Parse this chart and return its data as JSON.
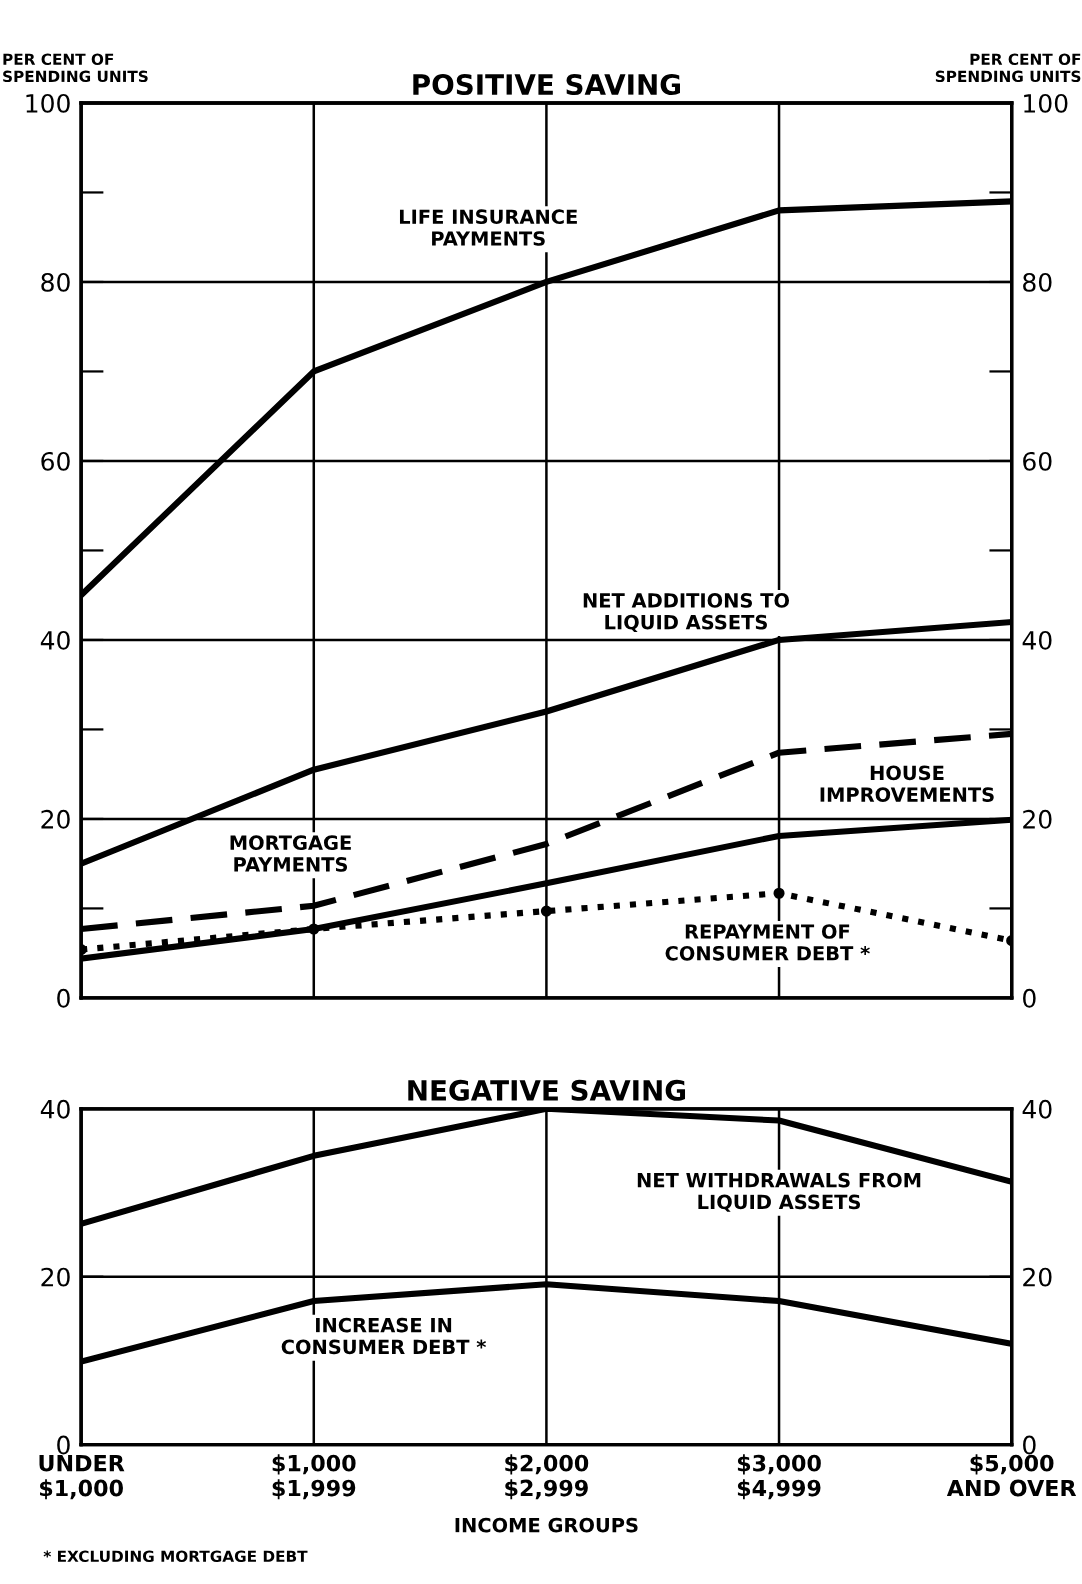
{
  "chart_data": [
    {
      "type": "line",
      "title": "POSITIVE SAVING",
      "ylabel": "PER CENT OF\nSPENDING UNITS",
      "y2label": "PER CENT OF\nSPENDING UNITS",
      "categories": [
        null,
        null,
        null,
        null,
        null
      ],
      "ylim": [
        0,
        100
      ],
      "yticks": [
        0,
        {
          "value": 10,
          "label": null
        },
        20,
        {
          "value": 30,
          "label": null
        },
        40,
        {
          "value": 50,
          "label": null
        },
        60,
        {
          "value": 70,
          "label": null
        },
        80,
        {
          "value": 90,
          "label": null
        },
        100
      ],
      "y2lim": [
        0,
        100
      ],
      "y2ticks": [
        0,
        {
          "value": 10,
          "label": null
        },
        20,
        {
          "value": 30,
          "label": null
        },
        40,
        {
          "value": 50,
          "label": null
        },
        60,
        {
          "value": 70,
          "label": null
        },
        80,
        {
          "value": 90,
          "label": null
        },
        100
      ],
      "tick_labels": "y",
      "grid": true,
      "legend": false,
      "series": [
        {
          "name": "LIFE INSURANCE\nPAYMENTS",
          "color": "#000000",
          "line_style": "solid",
          "values": [
            45,
            70,
            80,
            88,
            89
          ]
        },
        {
          "name": "NET ADDITIONS TO\nLIQUID ASSETS",
          "color": "#000000",
          "line_style": "solid",
          "values": [
            15,
            25.5,
            32,
            40,
            42
          ]
        },
        {
          "name": "MORTGAGE\nPAYMENTS",
          "color": "#000000",
          "line_style": "dashed",
          "values": [
            7.7,
            10.3,
            17.2,
            27.4,
            29.5
          ]
        },
        {
          "name": "HOUSE\nIMPROVEMENTS",
          "color": "#000000",
          "line_style": "solid",
          "values": [
            4.4,
            7.7,
            12.8,
            18.1,
            19.9
          ]
        },
        {
          "name": "REPAYMENT OF\nCONSUMER DEBT *",
          "color": "#000000",
          "line_style": "dotted",
          "marker": "circle",
          "values": [
            5.4,
            7.7,
            9.7,
            11.7,
            6.4
          ]
        }
      ]
    },
    {
      "type": "line",
      "title": "NEGATIVE SAVING",
      "xlabel": "INCOME GROUPS",
      "categories": [
        "UNDER\n$1,000",
        "$1,000\n$1,999",
        "$2,000\n$2,999",
        "$3,000\n$4,999",
        "$5,000\nAND OVER"
      ],
      "ylim": [
        0,
        40
      ],
      "yticks": [
        0,
        20,
        40
      ],
      "y2lim": [
        0,
        40
      ],
      "y2ticks": [
        0,
        20,
        40
      ],
      "grid": true,
      "legend": false,
      "annotations": [
        "* EXCLUDING MORTGAGE DEBT"
      ],
      "series": [
        {
          "name": "NET WITHDRAWALS FROM\nLIQUID ASSETS",
          "color": "#000000",
          "line_style": "solid",
          "values": [
            26.3,
            34.4,
            40,
            38.6,
            31.3
          ]
        },
        {
          "name": "INCREASE IN\nCONSUMER DEBT *",
          "color": "#000000",
          "line_style": "solid",
          "values": [
            9.9,
            17.1,
            19.1,
            17.1,
            12.0
          ]
        }
      ]
    }
  ]
}
